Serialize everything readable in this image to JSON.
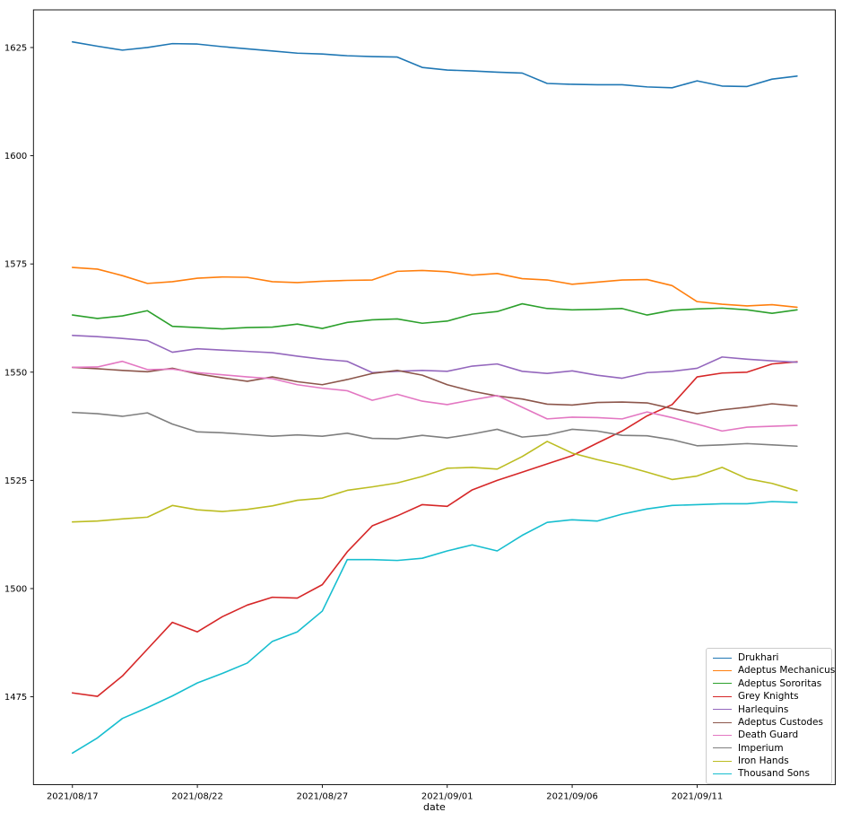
{
  "chart_data": {
    "type": "line",
    "title": "",
    "xlabel": "date",
    "ylabel": "",
    "legend_position": "lower right",
    "grid": false,
    "x_axis": {
      "tick_labels": [
        "2021/08/17",
        "2021/08/22",
        "2021/08/27",
        "2021/09/01",
        "2021/09/06",
        "2021/09/11"
      ],
      "tick_day_indices": [
        0,
        5,
        10,
        15,
        20,
        25
      ],
      "min_day": -1.56,
      "max_day": 30.53
    },
    "y_axis": {
      "tick_labels": [
        "1475",
        "1500",
        "1525",
        "1550",
        "1575",
        "1600",
        "1625"
      ],
      "tick_values": [
        1475,
        1500,
        1525,
        1550,
        1575,
        1600,
        1625
      ],
      "min": 1454.7,
      "max": 1633.7
    },
    "x": [
      "2021/08/17",
      "2021/08/18",
      "2021/08/19",
      "2021/08/20",
      "2021/08/21",
      "2021/08/22",
      "2021/08/23",
      "2021/08/24",
      "2021/08/25",
      "2021/08/26",
      "2021/08/27",
      "2021/08/28",
      "2021/08/29",
      "2021/08/30",
      "2021/08/31",
      "2021/09/01",
      "2021/09/02",
      "2021/09/03",
      "2021/09/04",
      "2021/09/05",
      "2021/09/06",
      "2021/09/07",
      "2021/09/08",
      "2021/09/09",
      "2021/09/10",
      "2021/09/11",
      "2021/09/12",
      "2021/09/13",
      "2021/09/14",
      "2021/09/15"
    ],
    "series": [
      {
        "name": "Drukhari",
        "color": "#1f77b4",
        "values": [
          1626.3,
          1625.3,
          1624.4,
          1625.0,
          1625.9,
          1625.8,
          1625.2,
          1624.7,
          1624.2,
          1623.7,
          1623.5,
          1623.1,
          1622.9,
          1622.8,
          1620.4,
          1619.8,
          1619.6,
          1619.3,
          1619.1,
          1616.7,
          1616.5,
          1616.4,
          1616.4,
          1615.9,
          1615.7,
          1617.3,
          1616.1,
          1616.0,
          1617.7,
          1618.4
        ]
      },
      {
        "name": "Adeptus Mechanicus",
        "color": "#ff7f0e",
        "values": [
          1574.2,
          1573.8,
          1572.3,
          1570.5,
          1570.9,
          1571.7,
          1572.0,
          1571.9,
          1570.9,
          1570.7,
          1571.0,
          1571.2,
          1571.3,
          1573.3,
          1573.5,
          1573.2,
          1572.4,
          1572.8,
          1571.6,
          1571.3,
          1570.3,
          1570.8,
          1571.3,
          1571.4,
          1570.0,
          1566.3,
          1565.7,
          1565.3,
          1565.6,
          1565.0
        ]
      },
      {
        "name": "Adeptus Sororitas",
        "color": "#2ca02c",
        "values": [
          1563.2,
          1562.4,
          1563.0,
          1564.2,
          1560.6,
          1560.3,
          1560.0,
          1560.3,
          1560.4,
          1561.1,
          1560.1,
          1561.5,
          1562.1,
          1562.3,
          1561.3,
          1561.8,
          1563.4,
          1564.0,
          1565.8,
          1564.7,
          1564.4,
          1564.5,
          1564.7,
          1563.2,
          1564.3,
          1564.6,
          1564.8,
          1564.4,
          1563.6,
          1564.4
        ]
      },
      {
        "name": "Grey Knights",
        "color": "#d62728",
        "values": [
          1475.9,
          1475.1,
          1479.8,
          1486.0,
          1492.2,
          1490.0,
          1493.5,
          1496.2,
          1498.0,
          1497.8,
          1500.9,
          1508.5,
          1514.5,
          1516.8,
          1519.4,
          1519.0,
          1522.8,
          1525.0,
          1526.9,
          1528.8,
          1530.7,
          1533.6,
          1536.4,
          1539.9,
          1542.5,
          1548.9,
          1549.8,
          1550.0,
          1551.9,
          1552.4
        ]
      },
      {
        "name": "Harlequins",
        "color": "#9467bd",
        "values": [
          1558.5,
          1558.2,
          1557.8,
          1557.3,
          1554.6,
          1555.4,
          1555.1,
          1554.8,
          1554.5,
          1553.7,
          1553.0,
          1552.5,
          1549.9,
          1550.2,
          1550.4,
          1550.2,
          1551.4,
          1551.9,
          1550.2,
          1549.7,
          1550.3,
          1549.3,
          1548.6,
          1549.9,
          1550.2,
          1550.9,
          1553.5,
          1553.0,
          1552.6,
          1552.3
        ]
      },
      {
        "name": "Adeptus Custodes",
        "color": "#8c564b",
        "values": [
          1551.1,
          1550.8,
          1550.4,
          1550.1,
          1550.9,
          1549.6,
          1548.7,
          1547.9,
          1548.9,
          1547.8,
          1547.1,
          1548.3,
          1549.7,
          1550.4,
          1549.3,
          1547.1,
          1545.6,
          1544.5,
          1543.8,
          1542.6,
          1542.4,
          1543.0,
          1543.1,
          1542.9,
          1541.6,
          1540.4,
          1541.3,
          1541.9,
          1542.7,
          1542.2
        ]
      },
      {
        "name": "Death Guard",
        "color": "#e377c2",
        "values": [
          1551.1,
          1551.2,
          1552.5,
          1550.6,
          1550.7,
          1549.9,
          1549.4,
          1548.9,
          1548.5,
          1547.1,
          1546.3,
          1545.7,
          1543.5,
          1544.9,
          1543.3,
          1542.5,
          1543.6,
          1544.6,
          1541.9,
          1539.2,
          1539.6,
          1539.5,
          1539.2,
          1540.8,
          1539.5,
          1538.0,
          1536.4,
          1537.3,
          1537.5,
          1537.7
        ]
      },
      {
        "name": "Imperium",
        "color": "#7f7f7f",
        "values": [
          1540.7,
          1540.4,
          1539.8,
          1540.6,
          1538.0,
          1536.2,
          1536.0,
          1535.6,
          1535.2,
          1535.5,
          1535.2,
          1535.9,
          1534.7,
          1534.6,
          1535.4,
          1534.8,
          1535.7,
          1536.8,
          1535.0,
          1535.5,
          1536.8,
          1536.4,
          1535.4,
          1535.3,
          1534.4,
          1533.0,
          1533.2,
          1533.5,
          1533.2,
          1532.9
        ]
      },
      {
        "name": "Iron Hands",
        "color": "#bcbd22",
        "values": [
          1515.4,
          1515.6,
          1516.1,
          1516.5,
          1519.2,
          1518.2,
          1517.8,
          1518.3,
          1519.1,
          1520.4,
          1520.9,
          1522.7,
          1523.5,
          1524.4,
          1525.9,
          1527.8,
          1528.0,
          1527.6,
          1530.5,
          1534.0,
          1531.3,
          1529.8,
          1528.5,
          1526.9,
          1525.2,
          1526.0,
          1528.0,
          1525.4,
          1524.3,
          1522.6
        ]
      },
      {
        "name": "Thousand Sons",
        "color": "#17becf",
        "values": [
          1462.0,
          1465.5,
          1470.0,
          1472.5,
          1475.2,
          1478.2,
          1480.4,
          1482.8,
          1487.8,
          1490.0,
          1494.8,
          1506.7,
          1506.7,
          1506.5,
          1507.0,
          1508.7,
          1510.1,
          1508.7,
          1512.3,
          1515.3,
          1515.9,
          1515.6,
          1517.2,
          1518.4,
          1519.2,
          1519.4,
          1519.6,
          1519.6,
          1520.1,
          1519.9
        ]
      }
    ]
  }
}
